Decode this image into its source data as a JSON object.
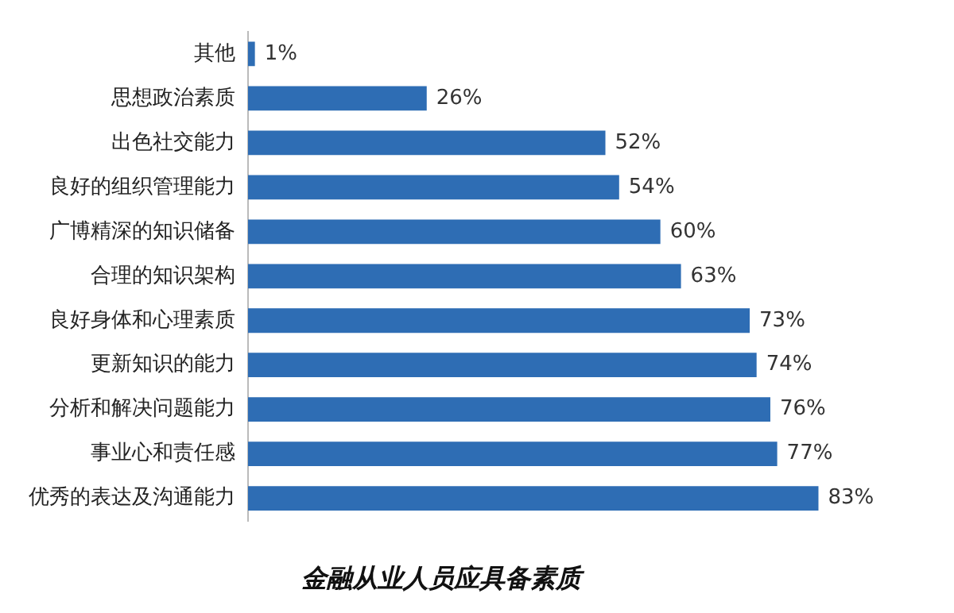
{
  "chart_data": {
    "type": "bar",
    "orientation": "horizontal",
    "title": "金融从业人员应具备素质",
    "categories": [
      "其他",
      "思想政治素质",
      "出色社交能力",
      "良好的组织管理能力",
      "广博精深的知识储备",
      "合理的知识架构",
      "良好身体和心理素质",
      "更新知识的能力",
      "分析和解决问题能力",
      "事业心和责任感",
      "优秀的表达及沟通能力"
    ],
    "values": [
      1,
      26,
      52,
      54,
      60,
      63,
      73,
      74,
      76,
      77,
      83
    ],
    "value_labels": [
      "1%",
      "26%",
      "52%",
      "54%",
      "60%",
      "63%",
      "73%",
      "74%",
      "76%",
      "77%",
      "83%"
    ],
    "color": "#2e6db4",
    "grid": false,
    "legend": false,
    "tick_labels": "y"
  }
}
